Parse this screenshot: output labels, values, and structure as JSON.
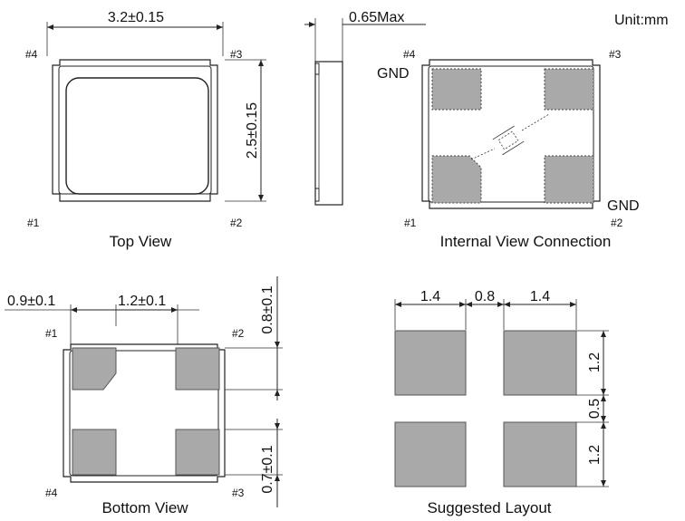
{
  "unit_label": "Unit:mm",
  "top_view": {
    "caption": "Top View",
    "width_dim": "3.2±0.15",
    "height_dim": "2.5±0.15",
    "pins": {
      "p1": "#1",
      "p2": "#2",
      "p3": "#3",
      "p4": "#4"
    }
  },
  "side_view": {
    "thickness_dim": "0.65Max"
  },
  "internal_view": {
    "caption": "Internal View Connection",
    "pins": {
      "p1": "#1",
      "p2": "#2",
      "p3": "#3",
      "p4": "#4"
    },
    "gnd_top": "GND",
    "gnd_bottom": "GND"
  },
  "bottom_view": {
    "caption": "Bottom View",
    "dim_left": "0.9±0.1",
    "dim_mid": "1.2±0.1",
    "dim_right_top": "0.8±0.1",
    "dim_right_bottom": "0.7±0.1",
    "pins": {
      "p1": "#1",
      "p2": "#2",
      "p3": "#3",
      "p4": "#4"
    }
  },
  "suggested_layout": {
    "caption": "Suggested Layout",
    "dim_pad_w1": "1.4",
    "dim_gap": "0.8",
    "dim_pad_w2": "1.4",
    "dim_pad_h1": "1.2",
    "dim_vgap": "0.5",
    "dim_pad_h2": "1.2"
  }
}
